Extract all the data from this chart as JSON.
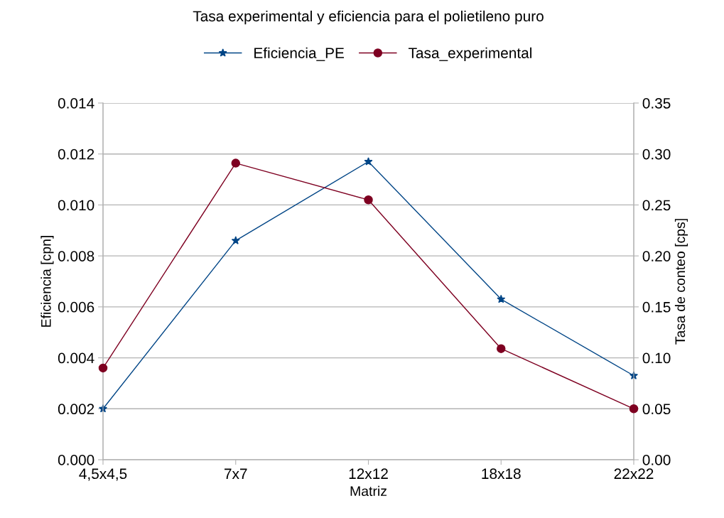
{
  "chart_data": {
    "type": "line",
    "title": "Tasa experimental y eficiencia para el polietileno puro",
    "xlabel": "Matriz",
    "ylabel": "Eficiencia [cpn]",
    "y2label": "Tasa de conteo [cps]",
    "categories": [
      "4,5x4,5",
      "7x7",
      "12x12",
      "18x18",
      "22x22"
    ],
    "series": [
      {
        "name": "Eficiencia_PE",
        "color": "#004586",
        "marker": "star",
        "values": [
          0.002,
          0.0086,
          0.0117,
          0.0063,
          0.0033
        ]
      },
      {
        "name": "Tasa_experimental",
        "color": "#7e0021",
        "marker": "circle",
        "axis": "y2",
        "values": [
          0.09,
          0.291,
          0.255,
          0.109,
          0.05
        ]
      }
    ],
    "ylim": [
      0,
      0.014
    ],
    "yticks": [
      {
        "value": 0,
        "label": "0.000"
      },
      {
        "value": 0.002,
        "label": "0.002"
      },
      {
        "value": 0.004,
        "label": "0.004"
      },
      {
        "value": 0.006,
        "label": "0.006"
      },
      {
        "value": 0.008,
        "label": "0.008"
      },
      {
        "value": 0.01,
        "label": "0.010"
      },
      {
        "value": 0.012,
        "label": "0.012"
      },
      {
        "value": 0.014,
        "label": "0.014"
      }
    ],
    "y2lim": [
      0,
      0.35
    ],
    "y2ticks": [
      {
        "value": 0,
        "label": "0.00"
      },
      {
        "value": 0.05,
        "label": "0.05"
      },
      {
        "value": 0.1,
        "label": "0.10"
      },
      {
        "value": 0.15,
        "label": "0.15"
      },
      {
        "value": 0.2,
        "label": "0.20"
      },
      {
        "value": 0.25,
        "label": "0.25"
      },
      {
        "value": 0.3,
        "label": "0.30"
      },
      {
        "value": 0.35,
        "label": "0.35"
      }
    ],
    "grid": "y",
    "legend": "top"
  }
}
